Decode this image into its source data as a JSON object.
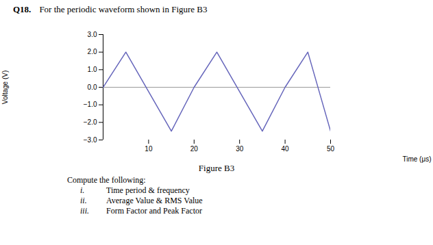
{
  "chart_data": {
    "type": "line",
    "title": "Q18.",
    "subtitle": "For the periodic waveform shown in Figure B3",
    "x": [
      0,
      5,
      15,
      20,
      25,
      35,
      40,
      45,
      50
    ],
    "values": [
      0,
      2,
      -2.5,
      0,
      2,
      -2.5,
      0,
      2,
      -2.5
    ],
    "color": "#6666bb",
    "xlabel": "Time (μs)",
    "ylabel": "Voltage (V)",
    "xlim": [
      0,
      50
    ],
    "ylim": [
      -3,
      3
    ],
    "xticks": [
      10,
      20,
      30,
      40,
      50
    ],
    "yticks": [
      -3,
      -2,
      -1,
      0,
      1,
      2,
      3
    ],
    "annotations": [
      {
        "text": "Figure B3"
      },
      {
        "text": "Compute the following:"
      },
      {
        "label": "i.",
        "text": "Time period & frequency"
      },
      {
        "label": "ii.",
        "text": "Average Value & RMS Value"
      },
      {
        "label": "iii.",
        "text": "Form Factor and Peak Factor"
      }
    ]
  }
}
